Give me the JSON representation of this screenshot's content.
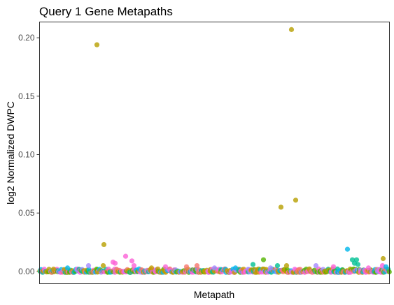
{
  "chart_data": {
    "type": "scatter",
    "title": "Query 1 Gene Metapaths",
    "xlabel": "Metapath",
    "ylabel": "log2 Normalized DWPC",
    "x_range": [
      0,
      500
    ],
    "ylim": [
      -0.0105,
      0.2135
    ],
    "y_ticks": [
      0.0,
      0.05,
      0.1,
      0.15,
      0.2
    ],
    "y_tick_labels": [
      "0.00",
      "0.05",
      "0.10",
      "0.15",
      "0.20"
    ],
    "x_ticks_shown": false,
    "grid": false,
    "legend": "none",
    "point_opacity": 0.8,
    "palette": [
      "#F8766D",
      "#C49A00",
      "#B79F00",
      "#53B400",
      "#00C094",
      "#00B6EB",
      "#A58AFF",
      "#FB61D7",
      "#F564E3"
    ],
    "points": [
      {
        "x": 82,
        "y": 0.194,
        "color": "#B79F00"
      },
      {
        "x": 360,
        "y": 0.207,
        "color": "#B79F00"
      },
      {
        "x": 345,
        "y": 0.055,
        "color": "#B79F00"
      },
      {
        "x": 366,
        "y": 0.061,
        "color": "#B79F00"
      },
      {
        "x": 92,
        "y": 0.023,
        "color": "#B79F00"
      },
      {
        "x": 91,
        "y": 0.005,
        "color": "#B79F00"
      },
      {
        "x": 440,
        "y": 0.019,
        "color": "#00B6EB"
      },
      {
        "x": 491,
        "y": 0.011,
        "color": "#B79F00"
      },
      {
        "x": 447,
        "y": 0.01,
        "color": "#00C094"
      },
      {
        "x": 453,
        "y": 0.01,
        "color": "#00C094"
      },
      {
        "x": 450,
        "y": 0.007,
        "color": "#00C094"
      },
      {
        "x": 455,
        "y": 0.006,
        "color": "#00C094"
      },
      {
        "x": 123,
        "y": 0.013,
        "color": "#FB61D7"
      },
      {
        "x": 132,
        "y": 0.009,
        "color": "#FB61D7"
      },
      {
        "x": 105,
        "y": 0.008,
        "color": "#FB61D7"
      },
      {
        "x": 108,
        "y": 0.007,
        "color": "#FB61D7"
      },
      {
        "x": 135,
        "y": 0.005,
        "color": "#FB61D7"
      },
      {
        "x": 320,
        "y": 0.01,
        "color": "#53B400"
      },
      {
        "x": 305,
        "y": 0.006,
        "color": "#00C094"
      },
      {
        "x": 340,
        "y": 0.005,
        "color": "#00C094"
      },
      {
        "x": 353,
        "y": 0.005,
        "color": "#B79F00"
      },
      {
        "x": 70,
        "y": 0.005,
        "color": "#A58AFF"
      },
      {
        "x": 225,
        "y": 0.005,
        "color": "#F8766D"
      },
      {
        "x": 210,
        "y": 0.004,
        "color": "#F8766D"
      },
      {
        "x": 180,
        "y": 0.004,
        "color": "#FB61D7"
      },
      {
        "x": 395,
        "y": 0.005,
        "color": "#A58AFF"
      },
      {
        "x": 420,
        "y": 0.004,
        "color": "#FB61D7"
      },
      {
        "x": 490,
        "y": 0.005,
        "color": "#FB61D7"
      },
      {
        "x": 495,
        "y": 0.004,
        "color": "#00B6EB"
      },
      {
        "x": 20,
        "y": 0.002,
        "color": "#C49A00"
      },
      {
        "x": 40,
        "y": 0.003,
        "color": "#00B6EB"
      },
      {
        "x": 160,
        "y": 0.003,
        "color": "#C49A00"
      },
      {
        "x": 250,
        "y": 0.003,
        "color": "#A58AFF"
      },
      {
        "x": 280,
        "y": 0.003,
        "color": "#00B6EB"
      },
      {
        "x": 330,
        "y": 0.003,
        "color": "#A58AFF"
      },
      {
        "x": 470,
        "y": 0.003,
        "color": "#FB61D7"
      }
    ],
    "baseline_band": {
      "x_from": 0,
      "x_to": 500,
      "count": 520,
      "y_min": -0.0008,
      "y_max": 0.0022
    }
  }
}
